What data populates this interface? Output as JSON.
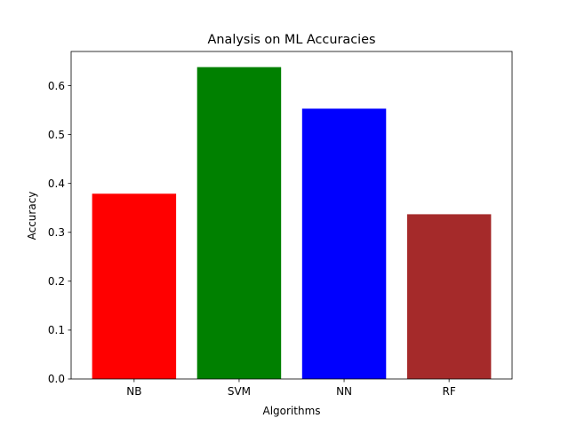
{
  "chart_data": {
    "type": "bar",
    "title": "Analysis on ML Accuracies",
    "xlabel": "Algorithms",
    "ylabel": "Accuracy",
    "categories": [
      "NB",
      "SVM",
      "NN",
      "RF"
    ],
    "values": [
      0.379,
      0.638,
      0.553,
      0.337
    ],
    "colors": [
      "#ff0000",
      "#008000",
      "#0000ff",
      "#a52a2a"
    ],
    "ylim": [
      0,
      0.67
    ],
    "yticks": [
      0.0,
      0.1,
      0.2,
      0.3,
      0.4,
      0.5,
      0.6
    ],
    "ytick_labels": [
      "0.0",
      "0.1",
      "0.2",
      "0.3",
      "0.4",
      "0.5",
      "0.6"
    ],
    "grid": false,
    "legend": "none"
  }
}
